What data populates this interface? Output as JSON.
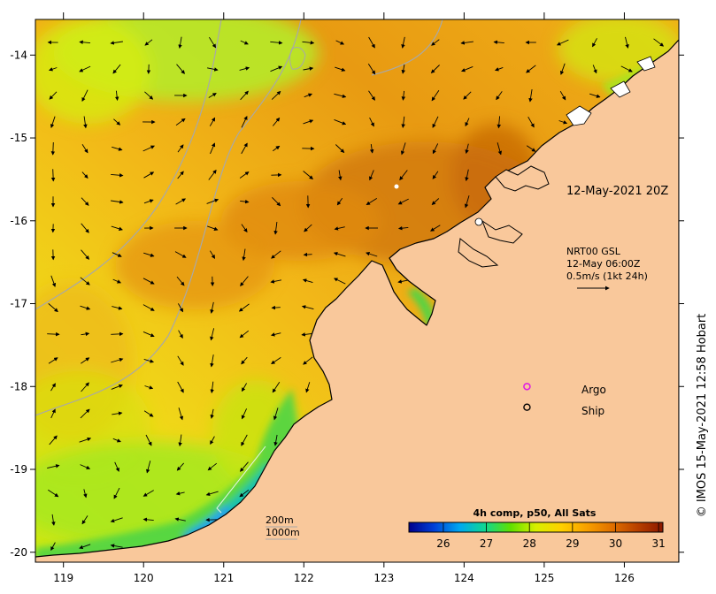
{
  "map": {
    "lon_ticks": [
      119,
      120,
      121,
      122,
      123,
      124,
      125,
      126
    ],
    "lat_ticks": [
      -14,
      -15,
      -16,
      -17,
      -18,
      -19,
      -20
    ],
    "lon_range": [
      118.65,
      126.68
    ],
    "lat_range": [
      -20.12,
      -13.57
    ],
    "colors": {
      "land": "#f9c89b",
      "coast": "#000000",
      "isobath": "#a0a0a0"
    }
  },
  "annotations": {
    "date_label": "12-May-2021 20Z",
    "current_product": "NRT00 GSL",
    "current_time": "12-May 06:00Z",
    "current_scale": "0.5m/s (1kt 24h)",
    "argo_label": "Argo",
    "ship_label": "Ship",
    "depth_200": "200m",
    "depth_1000": "1000m",
    "credit": "© IMOS 15-May-2021 12:58 Hobart"
  },
  "colorbar": {
    "title": "4h comp, p50, All Sats",
    "ticks": [
      26,
      27,
      28,
      29,
      30,
      31
    ],
    "range": [
      25.2,
      31.1
    ],
    "stops": [
      "#00008c",
      "#0040d8",
      "#00a8f0",
      "#10d890",
      "#60e000",
      "#d8f000",
      "#ffd000",
      "#f8a000",
      "#e07000",
      "#b84000",
      "#8c1800"
    ]
  },
  "observations": {
    "argo_floats": [
      {
        "lon": 125.05,
        "lat": -18.0
      }
    ],
    "ships": [
      {
        "lon": 125.05,
        "lat": -18.25
      }
    ]
  }
}
